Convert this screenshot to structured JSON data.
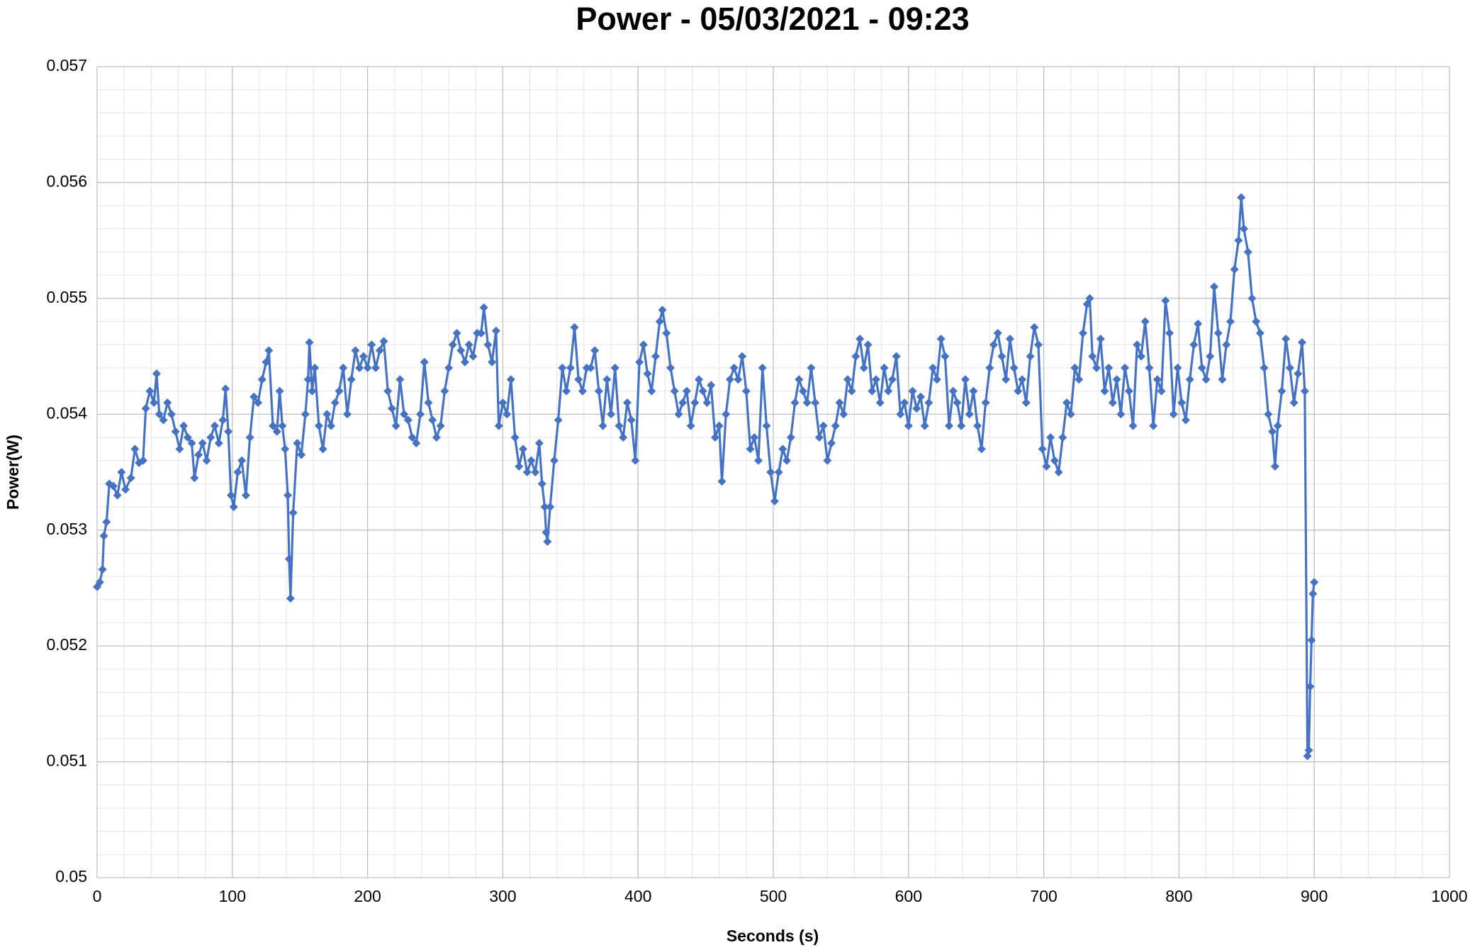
{
  "chart_data": {
    "type": "line",
    "title": "Power - 05/03/2021 - 09:23",
    "x_label": "Seconds (s)",
    "y_label": "Power(W)",
    "color": "#4472c4",
    "marker": "diamond",
    "grid": true,
    "minor_grid": true,
    "xlim": [
      0,
      1000
    ],
    "xticks": [
      0,
      100,
      200,
      300,
      400,
      500,
      600,
      700,
      800,
      900,
      1000
    ],
    "ylim": [
      0.05,
      0.057
    ],
    "yticks": [
      0.05,
      0.051,
      0.052,
      0.053,
      0.054,
      0.055,
      0.056,
      0.057
    ],
    "x": [
      0,
      2,
      4,
      5,
      7,
      9,
      12,
      15,
      18,
      21,
      25,
      28,
      31,
      34,
      36,
      39,
      42,
      44,
      46,
      49,
      52,
      55,
      58,
      61,
      64,
      67,
      70,
      72,
      75,
      78,
      81,
      84,
      87,
      90,
      93,
      95,
      97,
      99,
      101,
      104,
      107,
      110,
      113,
      116,
      119,
      122,
      125,
      127,
      130,
      133,
      135,
      137,
      139,
      141,
      142,
      143,
      145,
      148,
      151,
      154,
      156,
      157,
      159,
      161,
      164,
      167,
      170,
      173,
      176,
      179,
      182,
      185,
      188,
      191,
      194,
      197,
      200,
      203,
      206,
      209,
      212,
      215,
      218,
      221,
      224,
      227,
      230,
      233,
      236,
      239,
      242,
      245,
      248,
      251,
      254,
      257,
      260,
      263,
      266,
      269,
      272,
      275,
      278,
      281,
      284,
      286,
      289,
      292,
      295,
      297,
      300,
      303,
      306,
      309,
      312,
      315,
      318,
      321,
      324,
      327,
      329,
      331,
      332,
      333,
      335,
      338,
      341,
      344,
      347,
      350,
      353,
      356,
      359,
      362,
      365,
      368,
      371,
      374,
      377,
      380,
      383,
      386,
      389,
      392,
      395,
      398,
      401,
      404,
      407,
      410,
      413,
      416,
      418,
      421,
      424,
      427,
      430,
      433,
      436,
      439,
      442,
      445,
      448,
      451,
      454,
      457,
      460,
      462,
      465,
      468,
      471,
      474,
      477,
      480,
      483,
      486,
      489,
      492,
      495,
      498,
      501,
      504,
      507,
      510,
      513,
      516,
      519,
      522,
      525,
      528,
      531,
      534,
      537,
      540,
      543,
      546,
      549,
      552,
      555,
      558,
      561,
      564,
      567,
      570,
      573,
      576,
      579,
      582,
      585,
      588,
      591,
      594,
      597,
      600,
      603,
      606,
      609,
      612,
      615,
      618,
      621,
      624,
      627,
      630,
      633,
      636,
      639,
      642,
      645,
      648,
      651,
      654,
      657,
      660,
      663,
      666,
      669,
      672,
      675,
      678,
      681,
      684,
      687,
      690,
      693,
      696,
      699,
      702,
      705,
      708,
      711,
      714,
      717,
      720,
      723,
      726,
      729,
      732,
      734,
      736,
      739,
      742,
      745,
      748,
      751,
      754,
      757,
      760,
      763,
      766,
      769,
      772,
      775,
      778,
      781,
      784,
      787,
      790,
      793,
      796,
      799,
      802,
      805,
      808,
      811,
      814,
      817,
      820,
      823,
      826,
      829,
      832,
      835,
      838,
      841,
      844,
      846,
      848,
      851,
      854,
      857,
      860,
      863,
      866,
      869,
      871,
      873,
      876,
      879,
      882,
      885,
      888,
      891,
      893,
      895,
      896,
      897,
      898,
      899,
      900
    ],
    "values": [
      0.05251,
      0.05255,
      0.05266,
      0.05295,
      0.05307,
      0.0534,
      0.05338,
      0.0533,
      0.0535,
      0.05335,
      0.05345,
      0.0537,
      0.05358,
      0.0536,
      0.05405,
      0.0542,
      0.0541,
      0.05435,
      0.054,
      0.05395,
      0.0541,
      0.054,
      0.05385,
      0.0537,
      0.0539,
      0.0538,
      0.05375,
      0.05345,
      0.05365,
      0.05375,
      0.0536,
      0.0538,
      0.0539,
      0.05375,
      0.05395,
      0.05422,
      0.05385,
      0.0533,
      0.0532,
      0.0535,
      0.0536,
      0.0533,
      0.0538,
      0.05415,
      0.0541,
      0.0543,
      0.05445,
      0.05455,
      0.0539,
      0.05385,
      0.0542,
      0.0539,
      0.0537,
      0.0533,
      0.05275,
      0.05241,
      0.05315,
      0.05375,
      0.05365,
      0.054,
      0.0543,
      0.05462,
      0.0542,
      0.0544,
      0.0539,
      0.0537,
      0.054,
      0.0539,
      0.0541,
      0.0542,
      0.0544,
      0.054,
      0.0543,
      0.05455,
      0.0544,
      0.0545,
      0.0544,
      0.0546,
      0.0544,
      0.05455,
      0.05463,
      0.0542,
      0.05405,
      0.0539,
      0.0543,
      0.054,
      0.05395,
      0.0538,
      0.05375,
      0.054,
      0.05445,
      0.0541,
      0.05395,
      0.0538,
      0.0539,
      0.0542,
      0.0544,
      0.0546,
      0.0547,
      0.05455,
      0.05445,
      0.0546,
      0.0545,
      0.0547,
      0.0547,
      0.05492,
      0.0546,
      0.05445,
      0.05472,
      0.0539,
      0.0541,
      0.054,
      0.0543,
      0.0538,
      0.05355,
      0.0537,
      0.0535,
      0.0536,
      0.0535,
      0.05375,
      0.0534,
      0.0532,
      0.05298,
      0.0529,
      0.0532,
      0.0536,
      0.05395,
      0.0544,
      0.0542,
      0.0544,
      0.05475,
      0.0543,
      0.0542,
      0.0544,
      0.0544,
      0.05455,
      0.0542,
      0.0539,
      0.0543,
      0.054,
      0.0544,
      0.0539,
      0.0538,
      0.0541,
      0.05395,
      0.0536,
      0.05445,
      0.0546,
      0.05435,
      0.0542,
      0.0545,
      0.0548,
      0.0549,
      0.0547,
      0.0544,
      0.0542,
      0.054,
      0.0541,
      0.0542,
      0.0539,
      0.0541,
      0.0543,
      0.0542,
      0.0541,
      0.05425,
      0.0538,
      0.0539,
      0.05342,
      0.054,
      0.0543,
      0.0544,
      0.0543,
      0.0545,
      0.0542,
      0.0537,
      0.0538,
      0.0536,
      0.0544,
      0.0539,
      0.0535,
      0.05325,
      0.0535,
      0.0537,
      0.0536,
      0.0538,
      0.0541,
      0.0543,
      0.0542,
      0.0541,
      0.0544,
      0.0541,
      0.0538,
      0.0539,
      0.0536,
      0.05375,
      0.0539,
      0.0541,
      0.054,
      0.0543,
      0.0542,
      0.0545,
      0.05465,
      0.0544,
      0.0546,
      0.0542,
      0.0543,
      0.0541,
      0.0544,
      0.0542,
      0.0543,
      0.0545,
      0.054,
      0.0541,
      0.0539,
      0.0542,
      0.05405,
      0.05415,
      0.0539,
      0.0541,
      0.0544,
      0.0543,
      0.05465,
      0.0545,
      0.0539,
      0.0542,
      0.0541,
      0.0539,
      0.0543,
      0.054,
      0.0542,
      0.0539,
      0.0537,
      0.0541,
      0.0544,
      0.0546,
      0.0547,
      0.0545,
      0.0543,
      0.05465,
      0.0544,
      0.0542,
      0.0543,
      0.0541,
      0.0545,
      0.05475,
      0.0546,
      0.0537,
      0.05355,
      0.0538,
      0.0536,
      0.0535,
      0.0538,
      0.0541,
      0.054,
      0.0544,
      0.0543,
      0.0547,
      0.05495,
      0.055,
      0.0545,
      0.0544,
      0.05465,
      0.0542,
      0.0544,
      0.0541,
      0.0543,
      0.054,
      0.0544,
      0.0542,
      0.0539,
      0.0546,
      0.0545,
      0.0548,
      0.0544,
      0.0539,
      0.0543,
      0.0542,
      0.05498,
      0.0547,
      0.054,
      0.0544,
      0.0541,
      0.05395,
      0.0543,
      0.0546,
      0.05478,
      0.0544,
      0.0543,
      0.0545,
      0.0551,
      0.0547,
      0.0543,
      0.0546,
      0.0548,
      0.05525,
      0.0555,
      0.05587,
      0.0556,
      0.0554,
      0.055,
      0.0548,
      0.0547,
      0.0544,
      0.054,
      0.05385,
      0.05355,
      0.0539,
      0.0542,
      0.05465,
      0.0544,
      0.0541,
      0.05435,
      0.05462,
      0.0542,
      0.05105,
      0.0511,
      0.05165,
      0.05205,
      0.05245,
      0.05255
    ]
  }
}
